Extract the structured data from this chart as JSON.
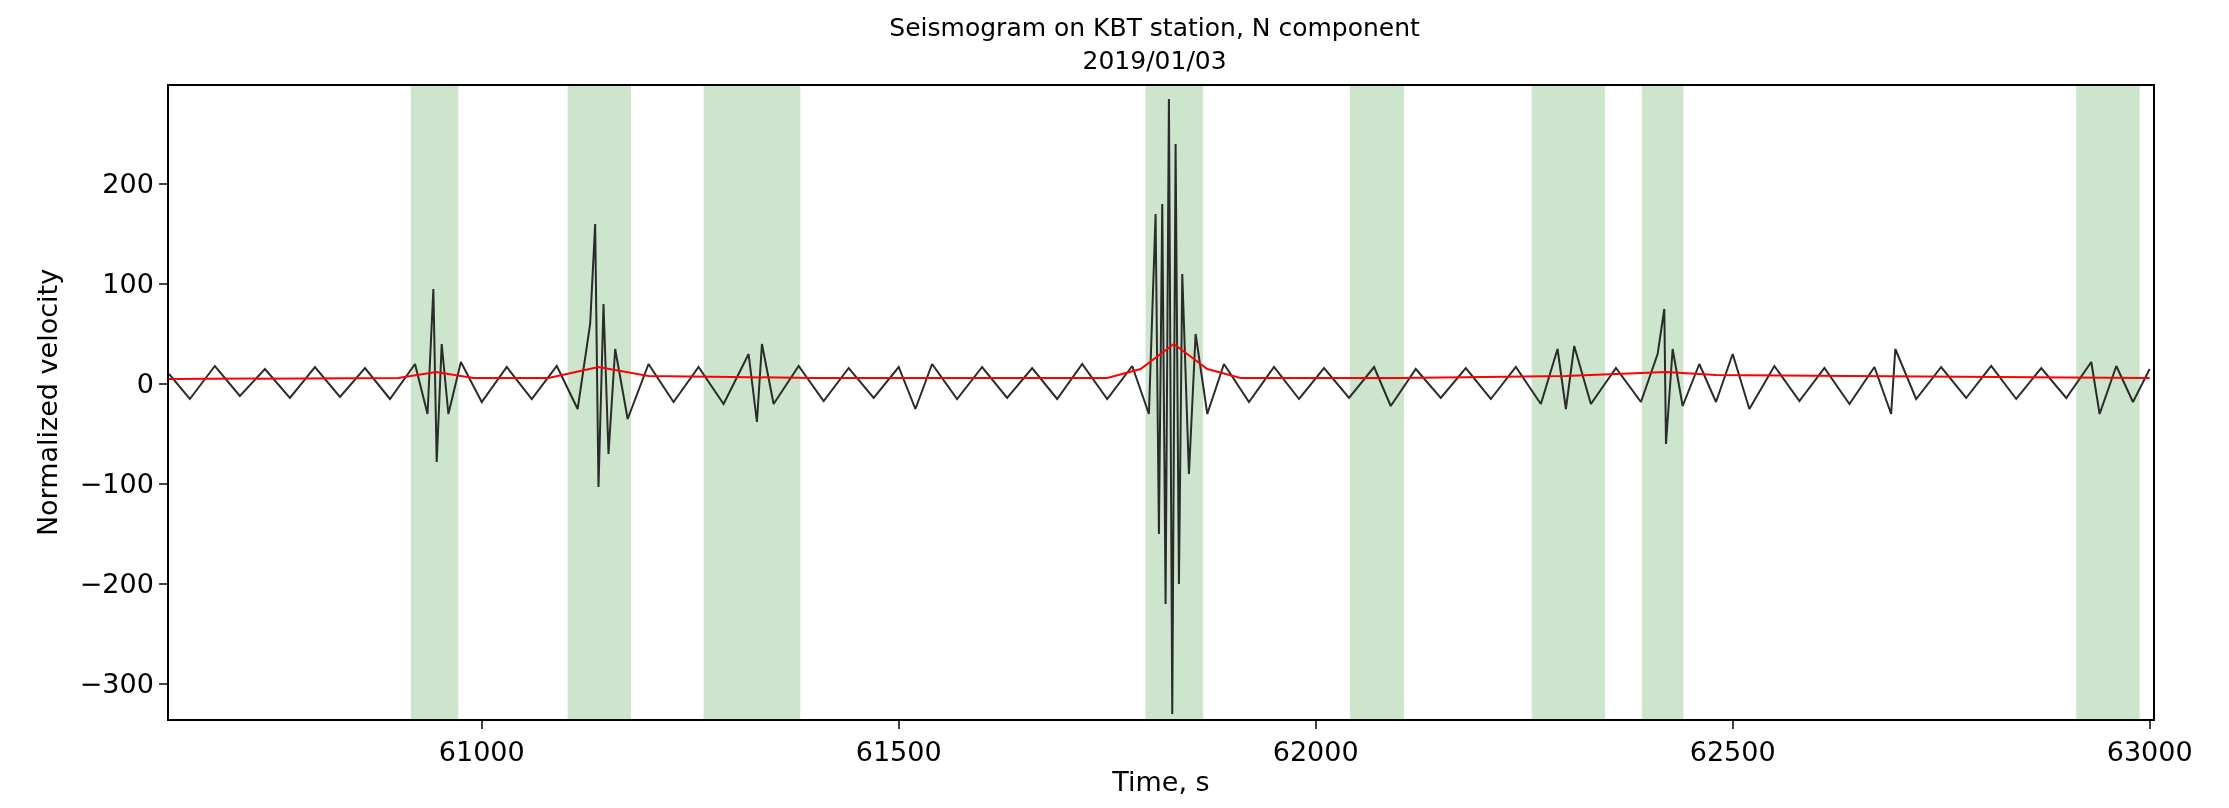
{
  "chart_data": {
    "type": "line",
    "title": "Seismogram on KBT station, N component",
    "subtitle": "2019/01/03",
    "xlabel": "Time, s",
    "ylabel": "Normalized velocity",
    "xlim": [
      60625,
      63004
    ],
    "xticks": [
      61000,
      61500,
      62000,
      62500,
      63000
    ],
    "ylim": [
      -335,
      298
    ],
    "yticks": [
      -300,
      -200,
      -100,
      0,
      100,
      200
    ],
    "grid": false,
    "marker": "none",
    "line_style": "solid",
    "bands": [
      {
        "axis": "x",
        "from": 60915,
        "to": 60972,
        "color": "#cde5cd"
      },
      {
        "axis": "x",
        "from": 61103,
        "to": 61179,
        "color": "#cde5cd"
      },
      {
        "axis": "x",
        "from": 61266,
        "to": 61382,
        "color": "#cde5cd"
      },
      {
        "axis": "x",
        "from": 61796,
        "to": 61865,
        "color": "#cde5cd"
      },
      {
        "axis": "x",
        "from": 62041,
        "to": 62106,
        "color": "#cde5cd"
      },
      {
        "axis": "x",
        "from": 62259,
        "to": 62347,
        "color": "#cde5cd"
      },
      {
        "axis": "x",
        "from": 62391,
        "to": 62441,
        "color": "#cde5cd"
      },
      {
        "axis": "x",
        "from": 62912,
        "to": 62988,
        "color": "#cde5cd"
      }
    ],
    "series": [
      {
        "color": "#2b2b2b",
        "x": [
          60625,
          60650,
          60680,
          60710,
          60740,
          60770,
          60800,
          60830,
          60860,
          60890,
          60920,
          60935,
          60942,
          60946,
          60952,
          60960,
          60975,
          61000,
          61030,
          61060,
          61090,
          61115,
          61130,
          61136,
          61140,
          61146,
          61152,
          61160,
          61175,
          61200,
          61230,
          61260,
          61290,
          61320,
          61330,
          61336,
          61350,
          61380,
          61410,
          61440,
          61470,
          61500,
          61520,
          61540,
          61570,
          61600,
          61630,
          61660,
          61690,
          61720,
          61750,
          61780,
          61800,
          61808,
          61812,
          61816,
          61820,
          61824,
          61828,
          61832,
          61836,
          61840,
          61848,
          61856,
          61870,
          61890,
          61920,
          61950,
          61980,
          62010,
          62040,
          62070,
          62090,
          62120,
          62150,
          62180,
          62210,
          62240,
          62270,
          62290,
          62300,
          62310,
          62330,
          62360,
          62390,
          62410,
          62418,
          62420,
          62428,
          62440,
          62460,
          62480,
          62500,
          62520,
          62550,
          62580,
          62610,
          62640,
          62670,
          62690,
          62695,
          62720,
          62750,
          62780,
          62810,
          62840,
          62870,
          62900,
          62930,
          62940,
          62960,
          62980,
          63000
        ],
        "values": [
          10,
          -15,
          18,
          -12,
          15,
          -14,
          17,
          -13,
          16,
          -15,
          20,
          -30,
          95,
          -78,
          40,
          -30,
          22,
          -18,
          17,
          -15,
          18,
          -25,
          60,
          160,
          -103,
          80,
          -70,
          35,
          -35,
          20,
          -18,
          17,
          -20,
          30,
          -38,
          40,
          -20,
          18,
          -17,
          16,
          -14,
          17,
          -25,
          20,
          -15,
          17,
          -14,
          16,
          -15,
          20,
          -15,
          18,
          -30,
          170,
          -150,
          180,
          -220,
          285,
          -330,
          240,
          -200,
          110,
          -90,
          50,
          -30,
          20,
          -18,
          17,
          -15,
          16,
          -14,
          17,
          -22,
          15,
          -14,
          16,
          -15,
          17,
          -20,
          35,
          -25,
          38,
          -20,
          16,
          -18,
          30,
          75,
          -60,
          35,
          -22,
          20,
          -18,
          30,
          -25,
          18,
          -17,
          16,
          -20,
          17,
          -30,
          35,
          -15,
          17,
          -14,
          18,
          -15,
          16,
          -14,
          22,
          -30,
          18,
          -18,
          15
        ]
      },
      {
        "color": "#ff0000",
        "x": [
          60625,
          60900,
          60945,
          60990,
          61080,
          61140,
          61200,
          61300,
          61400,
          61750,
          61790,
          61830,
          61870,
          61910,
          62100,
          62300,
          62420,
          62480,
          63000
        ],
        "values": [
          5,
          6,
          12,
          6,
          6,
          17,
          8,
          7,
          6,
          6,
          15,
          40,
          15,
          6,
          6,
          8,
          12,
          9,
          6
        ]
      }
    ]
  }
}
